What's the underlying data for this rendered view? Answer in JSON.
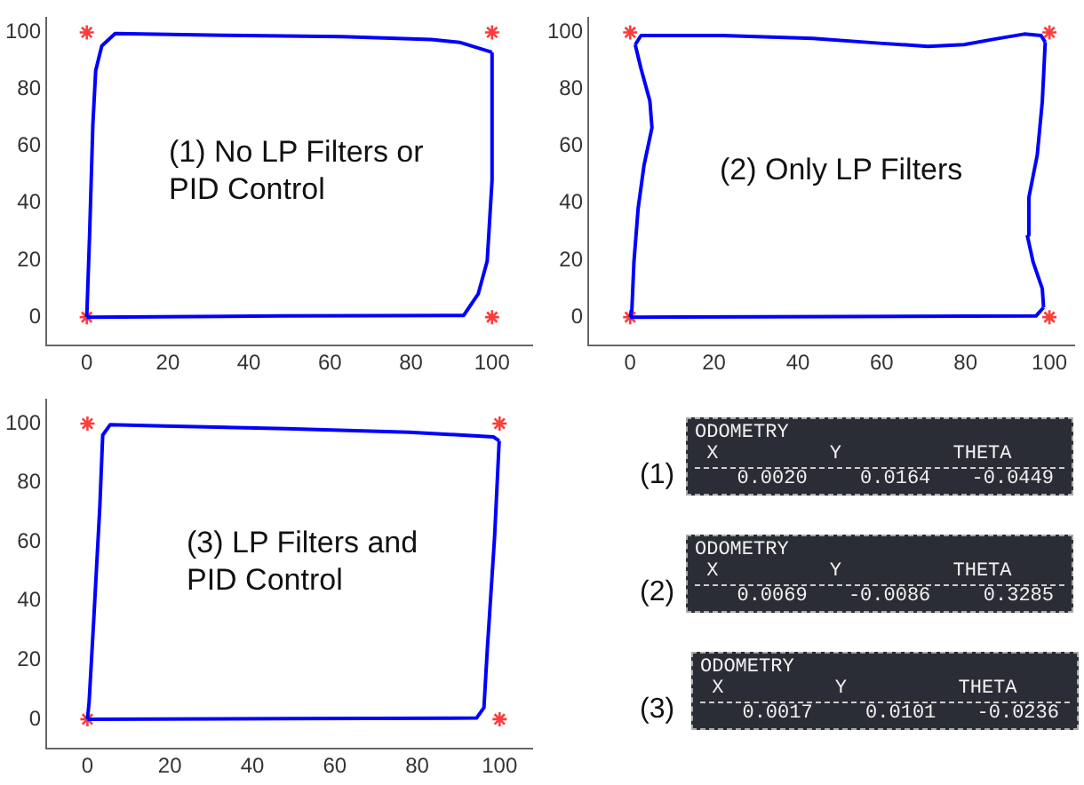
{
  "chart_data": [
    {
      "type": "line",
      "annotations": [
        "(1) No LP Filters or PID Control"
      ],
      "xlim": [
        -10,
        110
      ],
      "ylim": [
        -10,
        105
      ],
      "xticks": [
        0,
        20,
        40,
        60,
        80,
        100
      ],
      "yticks": [
        0,
        20,
        40,
        60,
        80,
        100
      ],
      "grid": false,
      "legend": false,
      "series": [
        {
          "type": "line",
          "color": "#0000ff",
          "marker": "none",
          "x": [
            0,
            48,
            93,
            96.6,
            98.8,
            100,
            100
          ],
          "values": [
            0,
            0.4,
            0.6,
            8.2,
            19.7,
            48,
            93
          ]
        },
        {
          "type": "line",
          "color": "#0000ff",
          "marker": "none",
          "x": [
            100,
            92,
            85,
            63,
            33.7,
            7,
            3.7,
            2.2,
            1.5,
            0.7,
            0
          ],
          "values": [
            93,
            96.5,
            97.5,
            98.5,
            99,
            99.6,
            95.2,
            86.6,
            67.5,
            29,
            0
          ]
        },
        {
          "type": "scatter",
          "color": "#ff3b3b",
          "marker": "cross",
          "x": [
            0,
            100,
            100,
            0
          ],
          "values": [
            0,
            0,
            100,
            100
          ]
        }
      ]
    },
    {
      "type": "line",
      "annotations": [
        "(2) Only LP Filters"
      ],
      "xlim": [
        -10,
        106
      ],
      "ylim": [
        -10,
        105
      ],
      "xticks": [
        0,
        20,
        40,
        60,
        80,
        100
      ],
      "yticks": [
        0,
        20,
        40,
        60,
        80,
        100
      ],
      "grid": false,
      "legend": false,
      "series": [
        {
          "type": "line",
          "color": "#0000ff",
          "marker": "none",
          "x": [
            0,
            50.8,
            96.8,
            98.6
          ],
          "values": [
            0,
            0.2,
            0.4,
            3.4
          ]
        },
        {
          "type": "line",
          "color": "#0000ff",
          "marker": "none",
          "x": [
            98.6,
            98.3,
            96.1,
            94.7
          ],
          "values": [
            3.4,
            10,
            19.4,
            28.8
          ]
        },
        {
          "type": "line",
          "color": "#0000ff",
          "marker": "none",
          "x": [
            94.7,
            95.1,
            97.1,
            98.3,
            99
          ],
          "values": [
            28.8,
            42,
            57,
            75.7,
            96.6
          ]
        },
        {
          "type": "line",
          "color": "#0000ff",
          "marker": "none",
          "x": [
            99,
            98,
            94,
            86.8,
            79.6,
            71,
            59.4,
            43.6,
            22,
            2.6,
            1.2
          ],
          "values": [
            96.6,
            98.9,
            99.4,
            97.6,
            95.7,
            95.1,
            96.2,
            97.9,
            98.9,
            98.9,
            95.7
          ]
        },
        {
          "type": "line",
          "color": "#0000ff",
          "marker": "none",
          "x": [
            1.2,
            2.6,
            4.7,
            5.2,
            3.3,
            1.9,
            0.9,
            0.4,
            0
          ],
          "values": [
            95.7,
            87.2,
            75.9,
            66.5,
            53.3,
            38.2,
            19.4,
            2.4,
            0
          ]
        },
        {
          "type": "scatter",
          "color": "#ff3b3b",
          "marker": "cross",
          "x": [
            0,
            100,
            100,
            0
          ],
          "values": [
            0,
            0,
            100,
            100
          ]
        }
      ]
    },
    {
      "type": "line",
      "annotations": [
        "(3) LP Filters and PID Control"
      ],
      "xlim": [
        -10,
        108
      ],
      "ylim": [
        -10,
        108
      ],
      "xticks": [
        0,
        20,
        40,
        60,
        80,
        100
      ],
      "yticks": [
        0,
        20,
        40,
        60,
        80,
        100
      ],
      "grid": false,
      "legend": false,
      "series": [
        {
          "type": "line",
          "color": "#0000ff",
          "marker": "none",
          "x": [
            0,
            48.3,
            94.4,
            96.2,
            97,
            98.8,
            99.9
          ],
          "values": [
            0,
            0.2,
            0.4,
            3.9,
            23.3,
            62.1,
            94.2
          ]
        },
        {
          "type": "line",
          "color": "#0000ff",
          "marker": "none",
          "x": [
            99.9,
            98.5,
            78,
            48.3,
            18.6,
            5.5,
            3.7,
            3,
            1.5,
            0.4,
            0
          ],
          "values": [
            94.2,
            95.5,
            97.1,
            98.3,
            99.2,
            99.6,
            96.1,
            71.8,
            33,
            5.8,
            0
          ]
        },
        {
          "type": "scatter",
          "color": "#ff3b3b",
          "marker": "cross",
          "x": [
            0,
            100,
            100,
            0
          ],
          "values": [
            0,
            0,
            100,
            100
          ]
        }
      ]
    },
    {
      "type": "other",
      "annotations": [
        "(1)",
        "ODOMETRY",
        "X",
        "Y",
        "THETA",
        "0.0020",
        "0.0164",
        "-0.0449",
        "(2)",
        "ODOMETRY",
        "X",
        "Y",
        "THETA",
        "0.0069",
        "-0.0086",
        "0.3285",
        "(3)",
        "ODOMETRY",
        "X",
        "Y",
        "THETA",
        "0.0017",
        "0.0101",
        "-0.0236"
      ]
    }
  ]
}
